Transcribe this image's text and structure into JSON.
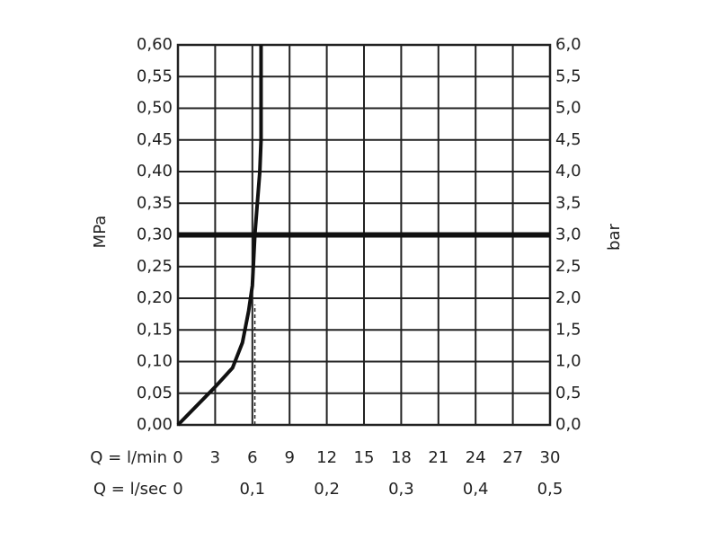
{
  "chart_data": {
    "type": "line",
    "ylabel": "MPa",
    "y2label": "bar",
    "xlabel": "Q = l/min",
    "x2label": "Q = l/sec",
    "xlim": [
      0,
      30
    ],
    "xticks": [
      0,
      3,
      6,
      9,
      12,
      15,
      18,
      21,
      24,
      27,
      30
    ],
    "x2lim": [
      0,
      0.5
    ],
    "x2ticks": [
      0,
      {
        "value": 0.1,
        "label": "0,1"
      },
      {
        "value": 0.2,
        "label": "0,2"
      },
      {
        "value": 0.3,
        "label": "0,3"
      },
      {
        "value": 0.4,
        "label": "0,4"
      },
      {
        "value": 0.5,
        "label": "0,5"
      }
    ],
    "ylim": [
      0,
      0.6
    ],
    "yticks": [
      {
        "value": 0,
        "label": "0,00"
      },
      {
        "value": 0.05,
        "label": "0,05"
      },
      {
        "value": 0.1,
        "label": "0,10"
      },
      {
        "value": 0.15,
        "label": "0,15"
      },
      {
        "value": 0.2,
        "label": "0,20"
      },
      {
        "value": 0.25,
        "label": "0,25"
      },
      {
        "value": 0.3,
        "label": "0,30"
      },
      {
        "value": 0.35,
        "label": "0,35"
      },
      {
        "value": 0.4,
        "label": "0,40"
      },
      {
        "value": 0.45,
        "label": "0,45"
      },
      {
        "value": 0.5,
        "label": "0,50"
      },
      {
        "value": 0.55,
        "label": "0,55"
      },
      {
        "value": 0.6,
        "label": "0,60"
      }
    ],
    "y2lim": [
      0,
      6
    ],
    "y2ticks": [
      {
        "value": 0,
        "label": "0,0"
      },
      {
        "value": 0.5,
        "label": "0,5"
      },
      {
        "value": 1,
        "label": "1,0"
      },
      {
        "value": 1.5,
        "label": "1,5"
      },
      {
        "value": 2,
        "label": "2,0"
      },
      {
        "value": 2.5,
        "label": "2,5"
      },
      {
        "value": 3,
        "label": "3,0"
      },
      {
        "value": 3.5,
        "label": "3,5"
      },
      {
        "value": 4,
        "label": "4,0"
      },
      {
        "value": 4.5,
        "label": "4,5"
      },
      {
        "value": 5,
        "label": "5,0"
      },
      {
        "value": 5.5,
        "label": "5,5"
      },
      {
        "value": 6,
        "label": "6,0"
      }
    ],
    "grid": true,
    "series": [
      {
        "color": "#111111",
        "x": [
          0,
          3,
          4.4,
          5.2,
          5.7,
          6.0,
          6.2,
          6.4,
          6.6,
          6.7,
          6.7
        ],
        "values": [
          0,
          0.06,
          0.09,
          0.13,
          0.18,
          0.22,
          0.3,
          0.35,
          0.4,
          0.45,
          0.6
        ]
      }
    ],
    "reference_line": {
      "y": 0.3,
      "color": "#111111"
    },
    "drop_line": {
      "x": 6.2,
      "y": [
        0,
        0.19
      ]
    }
  }
}
